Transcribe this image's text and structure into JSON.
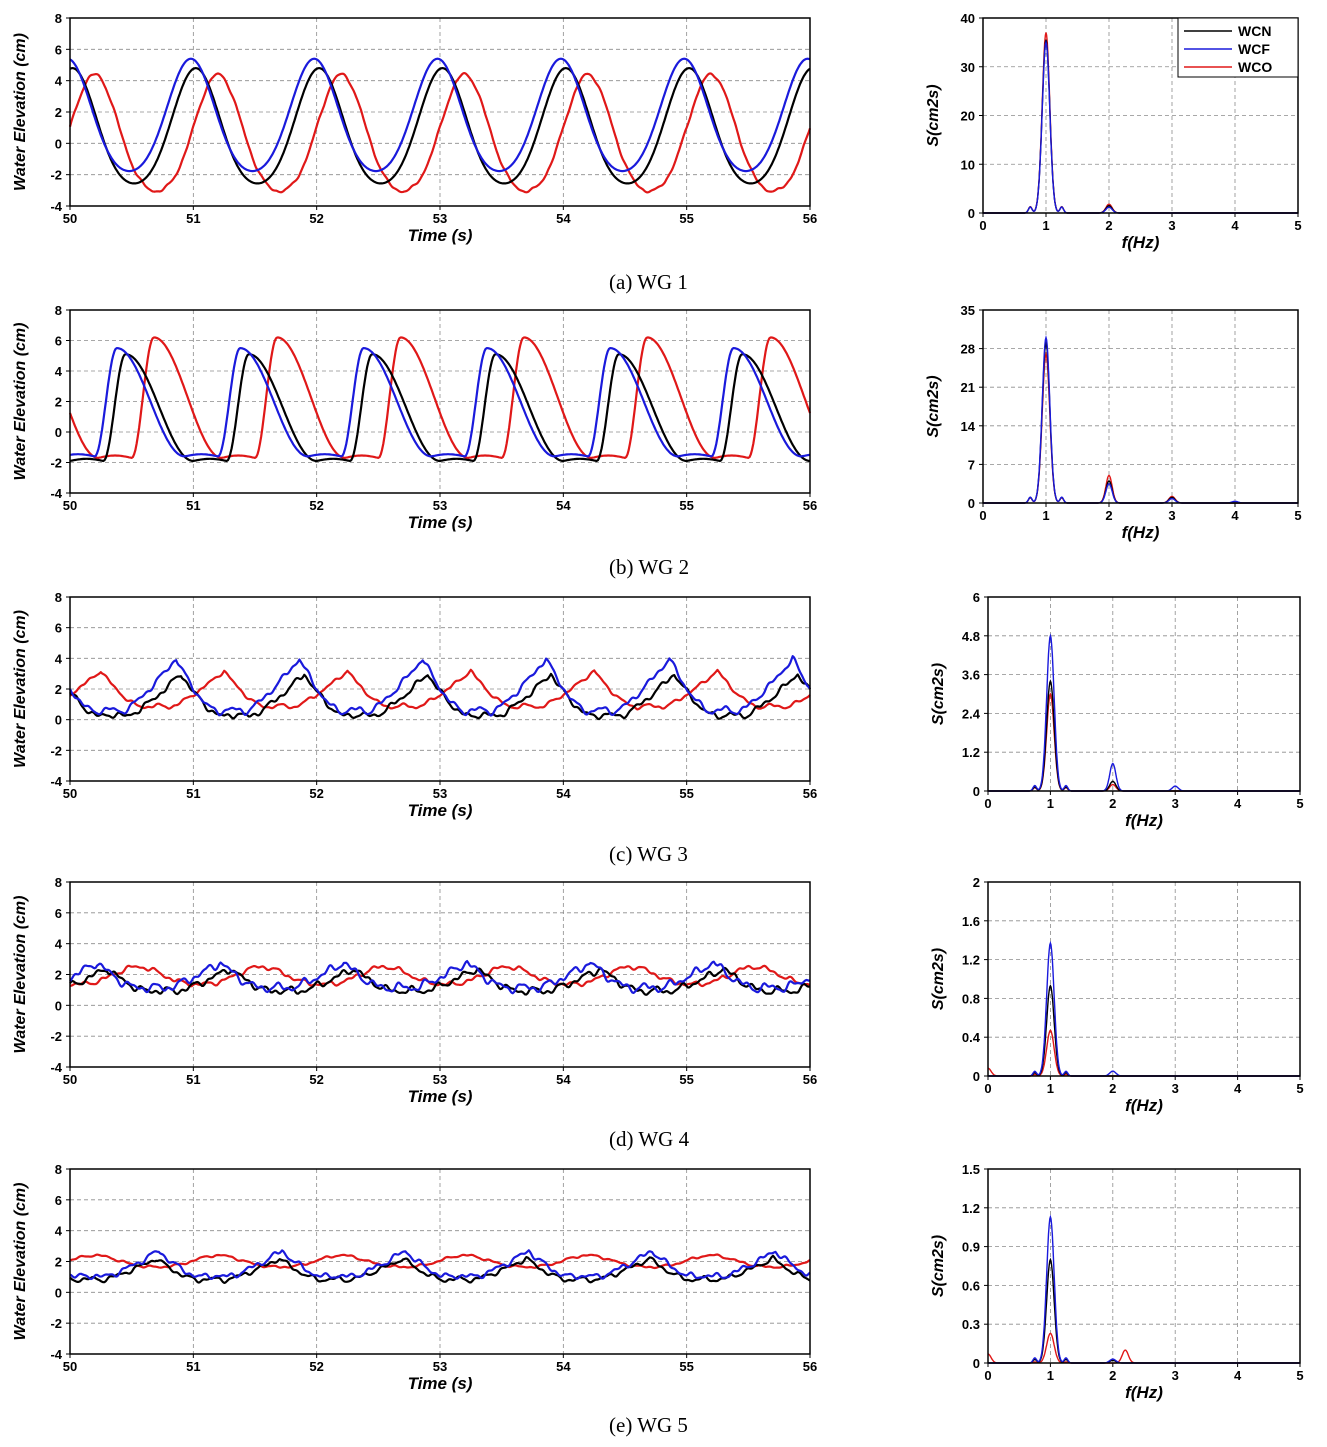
{
  "figure": {
    "legend": [
      "WCN",
      "WCF",
      "WCO"
    ],
    "colors": {
      "WCN": "#000000",
      "WCF": "#1a1adc",
      "WCO": "#e01818"
    }
  },
  "chart_data": [
    {
      "type": "line",
      "id": "ts1",
      "panel": "WG 1",
      "xlabel": "Time (s)",
      "ylabel": "Water Elevation (cm)",
      "xlim": [
        50,
        56
      ],
      "ylim": [
        -4,
        8
      ],
      "xticks": [
        50,
        51,
        52,
        53,
        54,
        55,
        56
      ],
      "yticks": [
        -4,
        -2,
        0,
        2,
        4,
        6,
        8
      ],
      "period": 1.0,
      "series": [
        {
          "name": "WCN",
          "crest_time": 51.02,
          "max": 4.8,
          "min": -3.0,
          "shape": "sym",
          "noise": 0
        },
        {
          "name": "WCF",
          "crest_time": 50.98,
          "max": 5.4,
          "min": -2.2,
          "shape": "sym",
          "noise": 0
        },
        {
          "name": "WCO",
          "crest_time": 50.2,
          "max": 4.4,
          "min": -3.5,
          "shape": "sym",
          "noise": 0.12
        }
      ]
    },
    {
      "type": "line",
      "id": "ts2",
      "panel": "WG 2",
      "xlabel": "Time (s)",
      "ylabel": "Water Elevation (cm)",
      "xlim": [
        50,
        56
      ],
      "ylim": [
        -4,
        8
      ],
      "xticks": [
        50,
        51,
        52,
        53,
        54,
        55,
        56
      ],
      "yticks": [
        -4,
        -2,
        0,
        2,
        4,
        6,
        8
      ],
      "period": 1.0,
      "series": [
        {
          "name": "WCN",
          "crest_time": 50.45,
          "max": 5.1,
          "min": -1.9,
          "shape": "skew",
          "noise": 0
        },
        {
          "name": "WCF",
          "crest_time": 50.38,
          "max": 5.5,
          "min": -1.6,
          "shape": "skew",
          "noise": 0
        },
        {
          "name": "WCO",
          "crest_time": 50.68,
          "max": 6.2,
          "min": -1.7,
          "shape": "skew",
          "noise": 0
        }
      ]
    },
    {
      "type": "line",
      "id": "ts3",
      "panel": "WG 3",
      "xlabel": "Time (s)",
      "ylabel": "Water Elevation (cm)",
      "xlim": [
        50,
        56
      ],
      "ylim": [
        -4,
        8
      ],
      "xticks": [
        50,
        51,
        52,
        53,
        54,
        55,
        56
      ],
      "yticks": [
        -4,
        -2,
        0,
        2,
        4,
        6,
        8
      ],
      "period": 1.0,
      "series": [
        {
          "name": "WCN",
          "crest_time": 50.9,
          "max": 3.0,
          "min": 0.2,
          "shape": "broken",
          "noise": 0.25
        },
        {
          "name": "WCF",
          "crest_time": 50.86,
          "max": 4.0,
          "min": 0.5,
          "shape": "broken",
          "noise": 0.25
        },
        {
          "name": "WCO",
          "crest_time": 50.25,
          "max": 3.2,
          "min": 0.8,
          "shape": "broken",
          "noise": 0.15
        }
      ]
    },
    {
      "type": "line",
      "id": "ts4",
      "panel": "WG 4",
      "xlabel": "Time (s)",
      "ylabel": "Water Elevation (cm)",
      "xlim": [
        50,
        56
      ],
      "ylim": [
        -4,
        8
      ],
      "xticks": [
        50,
        51,
        52,
        53,
        54,
        55,
        56
      ],
      "yticks": [
        -4,
        -2,
        0,
        2,
        4,
        6,
        8
      ],
      "period": 1.0,
      "series": [
        {
          "name": "WCN",
          "crest_time": 50.3,
          "max": 2.4,
          "min": 0.9,
          "shape": "broken",
          "noise": 0.3
        },
        {
          "name": "WCF",
          "crest_time": 50.22,
          "max": 2.8,
          "min": 1.1,
          "shape": "broken",
          "noise": 0.35
        },
        {
          "name": "WCO",
          "crest_time": 50.55,
          "max": 2.5,
          "min": 1.3,
          "shape": "sym",
          "noise": 0.2
        }
      ]
    },
    {
      "type": "line",
      "id": "ts5",
      "panel": "WG 5",
      "xlabel": "Time (s)",
      "ylabel": "Water Elevation (cm)",
      "xlim": [
        50,
        56
      ],
      "ylim": [
        -4,
        8
      ],
      "xticks": [
        50,
        51,
        52,
        53,
        54,
        55,
        56
      ],
      "yticks": [
        -4,
        -2,
        0,
        2,
        4,
        6,
        8
      ],
      "period": 1.0,
      "series": [
        {
          "name": "WCN",
          "crest_time": 50.7,
          "max": 2.2,
          "min": 0.8,
          "shape": "broken",
          "noise": 0.2
        },
        {
          "name": "WCF",
          "crest_time": 50.72,
          "max": 2.7,
          "min": 1.0,
          "shape": "broken",
          "noise": 0.25
        },
        {
          "name": "WCO",
          "crest_time": 50.2,
          "max": 2.4,
          "min": 1.6,
          "shape": "sym",
          "noise": 0.1
        }
      ]
    },
    {
      "type": "line",
      "id": "sp1",
      "panel": "WG 1 spectrum",
      "xlabel": "f(Hz)",
      "ylabel": "S(cm2s)",
      "xlim": [
        0,
        5
      ],
      "ylim": [
        0,
        40
      ],
      "xticks": [
        0,
        1,
        2,
        3,
        4,
        5
      ],
      "yticks": [
        0,
        10,
        20,
        30,
        40
      ],
      "show_legend": true,
      "series": [
        {
          "name": "WCN",
          "peaks": [
            [
              1.0,
              35.5
            ],
            [
              2.0,
              1.5
            ]
          ]
        },
        {
          "name": "WCF",
          "peaks": [
            [
              1.0,
              35.0
            ],
            [
              2.0,
              1.2
            ]
          ]
        },
        {
          "name": "WCO",
          "peaks": [
            [
              1.0,
              37.0
            ],
            [
              2.0,
              1.8
            ]
          ]
        }
      ]
    },
    {
      "type": "line",
      "id": "sp2",
      "panel": "WG 2 spectrum",
      "xlabel": "f(Hz)",
      "ylabel": "S(cm2s)",
      "xlim": [
        0,
        5
      ],
      "ylim": [
        0,
        35
      ],
      "xticks": [
        0,
        1,
        2,
        3,
        4,
        5
      ],
      "yticks": [
        0,
        7,
        14,
        21,
        28,
        35
      ],
      "series": [
        {
          "name": "WCN",
          "peaks": [
            [
              1.0,
              29.0
            ],
            [
              2.0,
              4.0
            ],
            [
              3.0,
              1.0
            ]
          ]
        },
        {
          "name": "WCF",
          "peaks": [
            [
              1.0,
              30.0
            ],
            [
              2.0,
              3.5
            ],
            [
              3.0,
              0.8
            ],
            [
              4.0,
              0.3
            ]
          ]
        },
        {
          "name": "WCO",
          "peaks": [
            [
              1.0,
              27.0
            ],
            [
              2.0,
              5.0
            ],
            [
              3.0,
              1.2
            ]
          ]
        }
      ]
    },
    {
      "type": "line",
      "id": "sp3",
      "panel": "WG 3 spectrum",
      "xlabel": "f(Hz)",
      "ylabel": "S(cm2s)",
      "xlim": [
        0,
        5
      ],
      "ylim": [
        0,
        6
      ],
      "xticks": [
        0,
        1,
        2,
        3,
        4,
        5
      ],
      "yticks": [
        0,
        1.2,
        2.4,
        3.6,
        4.8,
        6
      ],
      "series": [
        {
          "name": "WCN",
          "peaks": [
            [
              1.0,
              3.4
            ],
            [
              2.0,
              0.3
            ]
          ]
        },
        {
          "name": "WCF",
          "peaks": [
            [
              1.0,
              4.8
            ],
            [
              2.0,
              0.85
            ],
            [
              3.0,
              0.15
            ]
          ]
        },
        {
          "name": "WCO",
          "peaks": [
            [
              1.0,
              3.0
            ],
            [
              2.0,
              0.2
            ]
          ]
        }
      ]
    },
    {
      "type": "line",
      "id": "sp4",
      "panel": "WG 4 spectrum",
      "xlabel": "f(Hz)",
      "ylabel": "S(cm2s)",
      "xlim": [
        0,
        5
      ],
      "ylim": [
        0,
        2
      ],
      "xticks": [
        0,
        1,
        2,
        3,
        4,
        5
      ],
      "yticks": [
        0,
        0.4,
        0.8,
        1.2,
        1.6,
        2
      ],
      "series": [
        {
          "name": "WCN",
          "peaks": [
            [
              1.0,
              0.93
            ]
          ]
        },
        {
          "name": "WCF",
          "peaks": [
            [
              1.0,
              1.37
            ],
            [
              2.0,
              0.05
            ]
          ]
        },
        {
          "name": "WCO",
          "peaks": [
            [
              1.0,
              0.47
            ],
            [
              0.0,
              0.08
            ]
          ]
        }
      ]
    },
    {
      "type": "line",
      "id": "sp5",
      "panel": "WG 5 spectrum",
      "xlabel": "f(Hz)",
      "ylabel": "S(cm2s)",
      "xlim": [
        0,
        5
      ],
      "ylim": [
        0,
        1.5
      ],
      "xticks": [
        0,
        1,
        2,
        3,
        4,
        5
      ],
      "yticks": [
        0,
        0.3,
        0.6,
        0.9,
        1.2,
        1.5
      ],
      "series": [
        {
          "name": "WCN",
          "peaks": [
            [
              1.0,
              0.8
            ],
            [
              2.0,
              0.02
            ]
          ]
        },
        {
          "name": "WCF",
          "peaks": [
            [
              1.0,
              1.13
            ],
            [
              2.0,
              0.03
            ]
          ]
        },
        {
          "name": "WCO",
          "peaks": [
            [
              1.0,
              0.23
            ],
            [
              2.2,
              0.1
            ],
            [
              0.0,
              0.07
            ]
          ]
        }
      ]
    }
  ],
  "captions": [
    "(a)  WG 1",
    "(b)  WG 2",
    "(c)  WG 3",
    "(d)  WG 4",
    "(e)  WG 5"
  ]
}
